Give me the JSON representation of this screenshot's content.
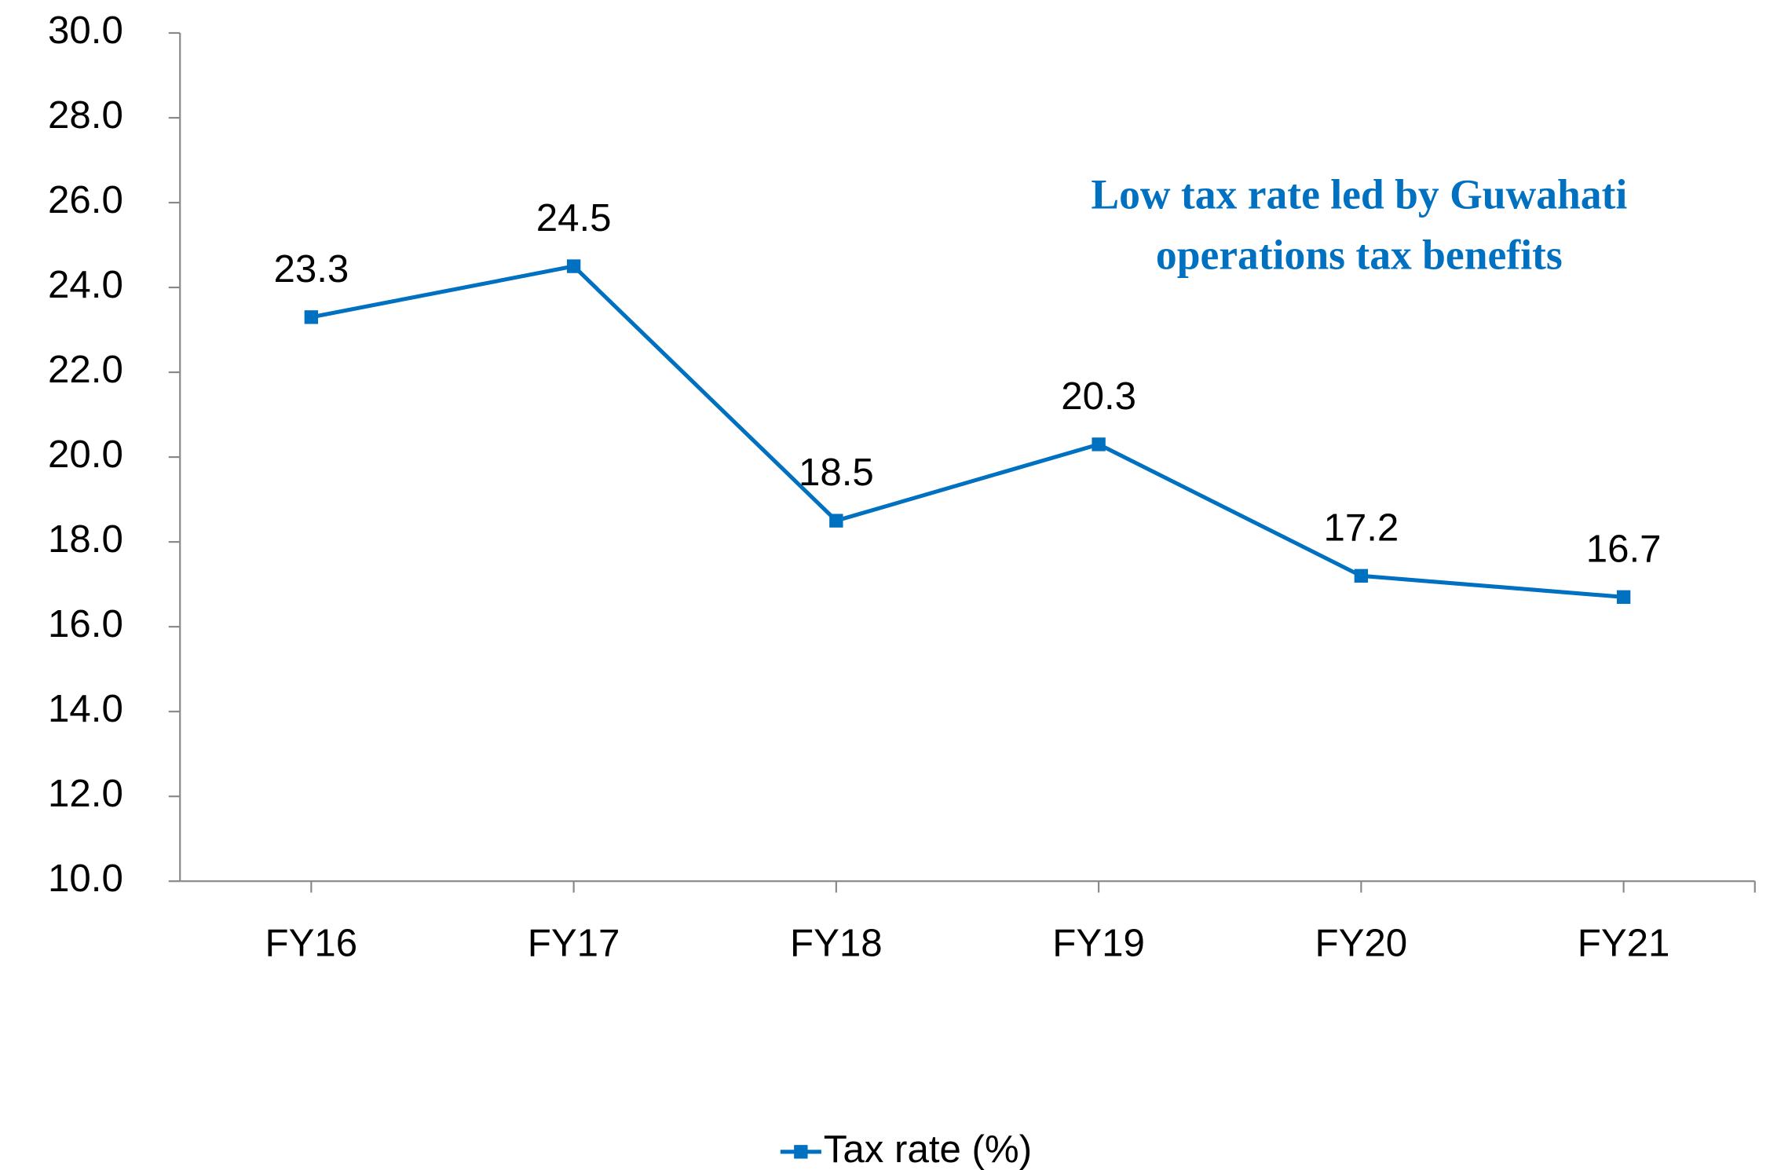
{
  "chart_data": {
    "type": "line",
    "annotation": [
      "Low tax rate led by Guwahati",
      "operations tax benefits"
    ],
    "categories": [
      "FY16",
      "FY17",
      "FY18",
      "FY19",
      "FY20",
      "FY21"
    ],
    "series": [
      {
        "name": "Tax rate (%)",
        "color": "#0070c0",
        "values": [
          23.3,
          24.5,
          18.5,
          20.3,
          17.2,
          16.7
        ]
      }
    ],
    "ylim": [
      10,
      30
    ],
    "yticks": [
      {
        "value": 10,
        "label": "10.0"
      },
      {
        "value": 12,
        "label": "12.0"
      },
      {
        "value": 14,
        "label": "14.0"
      },
      {
        "value": 16,
        "label": "16.0"
      },
      {
        "value": 18,
        "label": "18.0"
      },
      {
        "value": 20,
        "label": "20.0"
      },
      {
        "value": 22,
        "label": "22.0"
      },
      {
        "value": 24,
        "label": "24.0"
      },
      {
        "value": 26,
        "label": "26.0"
      },
      {
        "value": 28,
        "label": "28.0"
      },
      {
        "value": 30,
        "label": "30.0"
      }
    ],
    "grid": false,
    "legend": "bottom"
  }
}
